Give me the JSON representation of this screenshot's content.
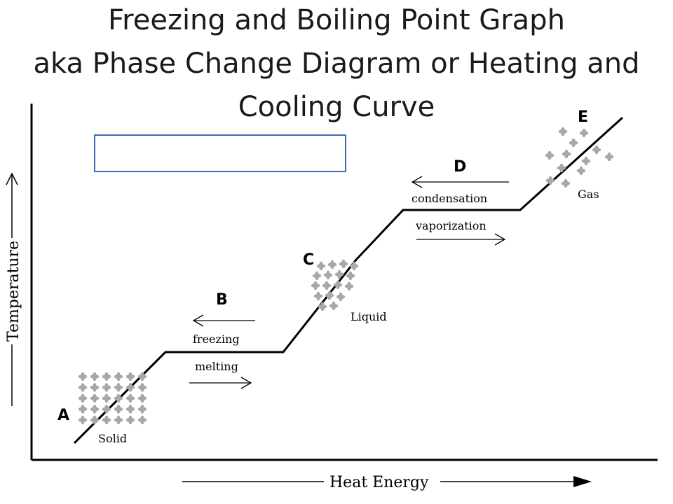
{
  "title": {
    "line1": "Freezing and Boiling Point Graph",
    "line2": "aka Phase Change Diagram or Heating and",
    "line3": "Cooling Curve"
  },
  "axes": {
    "y_label": "Temperature",
    "x_label": "Heat Energy"
  },
  "points": {
    "a": "A",
    "b": "B",
    "c": "C",
    "d": "D",
    "e": "E"
  },
  "phases": {
    "solid": "Solid",
    "liquid": "Liquid",
    "gas": "Gas"
  },
  "transitions": {
    "freezing": "freezing",
    "melting": "melting",
    "condensation": "condensation",
    "vaporization": "vaporization"
  },
  "answer_box": {
    "text": ""
  },
  "colors": {
    "line": "#000000",
    "particle": "#a8a8a8",
    "box_border": "#3a6db5"
  }
}
